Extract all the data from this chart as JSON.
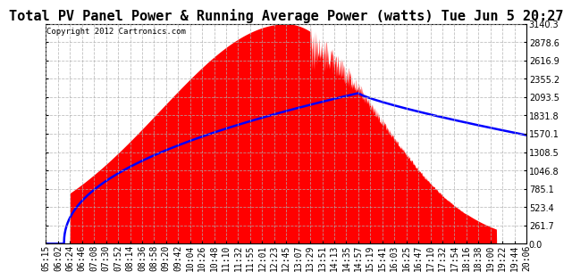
{
  "title": "Total PV Panel Power & Running Average Power (watts) Tue Jun 5 20:27",
  "copyright": "Copyright 2012 Cartronics.com",
  "ymax": 3140.3,
  "ymin": 0.0,
  "yticks": [
    0.0,
    261.7,
    523.4,
    785.1,
    1046.8,
    1308.5,
    1570.1,
    1831.8,
    2093.5,
    2355.2,
    2616.9,
    2878.6,
    3140.3
  ],
  "xtick_labels": [
    "05:15",
    "06:02",
    "06:24",
    "06:46",
    "07:08",
    "07:30",
    "07:52",
    "08:14",
    "08:36",
    "08:58",
    "09:20",
    "09:42",
    "10:04",
    "10:26",
    "10:48",
    "11:10",
    "11:32",
    "11:55",
    "12:01",
    "12:23",
    "12:45",
    "13:07",
    "13:29",
    "13:51",
    "14:13",
    "14:35",
    "14:57",
    "15:19",
    "15:41",
    "16:03",
    "16:25",
    "16:47",
    "17:10",
    "17:32",
    "17:54",
    "18:16",
    "18:38",
    "19:00",
    "19:22",
    "19:44",
    "20:06"
  ],
  "bg_color": "#ffffff",
  "fill_color": "#ff0000",
  "line_color": "#0000ff",
  "grid_color": "#b0b0b0",
  "title_fontsize": 11,
  "tick_fontsize": 7,
  "copyright_fontsize": 6.5
}
